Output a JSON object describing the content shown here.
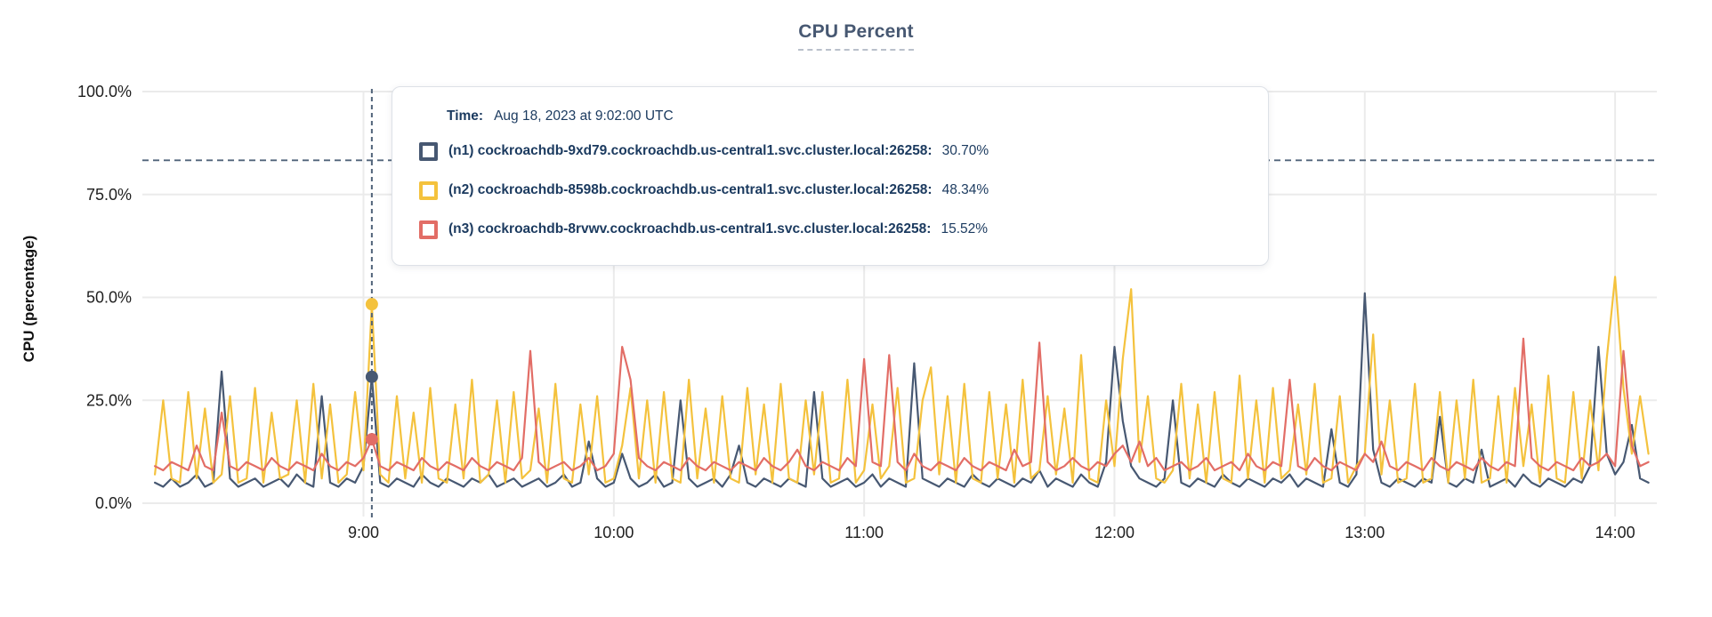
{
  "title": "CPU Percent",
  "y_axis_title": "CPU (percentage)",
  "tooltip": {
    "time_label": "Time:",
    "time_value": "Aug 18, 2023 at 9:02:00 UTC",
    "rows": [
      {
        "label": "(n1) cockroachdb-9xd79.cockroachdb.us-central1.svc.cluster.local:26258:",
        "value": "30.70%",
        "color": "#475872"
      },
      {
        "label": "(n2) cockroachdb-8598b.cockroachdb.us-central1.svc.cluster.local:26258:",
        "value": "48.34%",
        "color": "#f4c23d"
      },
      {
        "label": "(n3) cockroachdb-8rvwv.cockroachdb.us-central1.svc.cluster.local:26258:",
        "value": "15.52%",
        "color": "#e26d66"
      }
    ]
  },
  "colors": {
    "title": "#475872",
    "grid": "#ebebeb",
    "crosshair": "#51647a",
    "tick_text": "#1f1f1f",
    "tooltip_text": "#1b3a5f"
  },
  "chart_data": {
    "type": "line",
    "title": "CPU Percent",
    "xlabel": "",
    "ylabel": "CPU (percentage)",
    "ylim": [
      0,
      100
    ],
    "grid": true,
    "legend_position": "tooltip",
    "y_ticks": [
      {
        "value": 0,
        "label": "0.0%"
      },
      {
        "value": 25,
        "label": "25.0%"
      },
      {
        "value": 50,
        "label": "50.0%"
      },
      {
        "value": 75,
        "label": "75.0%"
      },
      {
        "value": 100,
        "label": "100.0%"
      }
    ],
    "x_ticks": [
      {
        "minute": 540,
        "label": "9:00"
      },
      {
        "minute": 600,
        "label": "10:00"
      },
      {
        "minute": 660,
        "label": "11:00"
      },
      {
        "minute": 720,
        "label": "12:00"
      },
      {
        "minute": 780,
        "label": "13:00"
      },
      {
        "minute": 840,
        "label": "14:00"
      }
    ],
    "x_range_minutes": [
      487,
      850
    ],
    "start_minute": 490,
    "step_minutes": 2,
    "threshold_percent": 83.3,
    "hover": {
      "minute": 542,
      "time": "Aug 18, 2023 at 9:02:00 UTC",
      "values": [
        30.7,
        48.34,
        15.52
      ]
    },
    "series": [
      {
        "name": "(n1) cockroachdb-9xd79.cockroachdb.us-central1.svc.cluster.local:26258",
        "color": "#475872",
        "values": [
          5,
          4,
          6,
          4,
          5,
          7,
          4,
          5,
          32,
          6,
          4,
          5,
          6,
          4,
          5,
          6,
          4,
          7,
          5,
          4,
          26,
          5,
          4,
          6,
          5,
          9,
          30.7,
          5,
          4,
          6,
          5,
          4,
          7,
          5,
          4,
          6,
          5,
          4,
          6,
          5,
          7,
          4,
          5,
          6,
          4,
          5,
          6,
          4,
          5,
          7,
          4,
          5,
          15,
          6,
          4,
          5,
          12,
          6,
          4,
          5,
          7,
          4,
          5,
          25,
          6,
          4,
          5,
          6,
          4,
          7,
          14,
          5,
          4,
          6,
          5,
          4,
          6,
          5,
          4,
          27,
          6,
          4,
          5,
          6,
          4,
          5,
          7,
          4,
          6,
          5,
          4,
          34,
          6,
          5,
          4,
          6,
          5,
          4,
          7,
          5,
          4,
          6,
          5,
          4,
          6,
          5,
          8,
          4,
          6,
          5,
          4,
          7,
          5,
          4,
          10,
          38,
          20,
          9,
          6,
          5,
          4,
          6,
          25,
          5,
          4,
          6,
          5,
          4,
          7,
          5,
          4,
          6,
          5,
          4,
          6,
          5,
          7,
          4,
          6,
          5,
          4,
          18,
          5,
          4,
          7,
          51,
          13,
          5,
          4,
          6,
          5,
          4,
          6,
          5,
          21,
          5,
          4,
          6,
          5,
          13,
          4,
          5,
          6,
          4,
          7,
          5,
          4,
          6,
          5,
          4,
          6,
          5,
          9,
          38,
          12,
          7,
          10,
          19,
          6,
          5
        ]
      },
      {
        "name": "(n2) cockroachdb-8598b.cockroachdb.us-central1.svc.cluster.local:26258",
        "color": "#f4c23d",
        "values": [
          7,
          25,
          6,
          5,
          27,
          6,
          23,
          5,
          7,
          26,
          5,
          6,
          28,
          5,
          22,
          6,
          7,
          25,
          5,
          29,
          6,
          24,
          5,
          7,
          27,
          8,
          48.3,
          7,
          5,
          26,
          6,
          22,
          5,
          28,
          6,
          5,
          24,
          6,
          30,
          5,
          7,
          25,
          5,
          27,
          6,
          8,
          23,
          5,
          29,
          6,
          5,
          24,
          7,
          26,
          5,
          6,
          14,
          28,
          6,
          25,
          5,
          27,
          6,
          5,
          30,
          6,
          23,
          5,
          26,
          6,
          5,
          28,
          7,
          24,
          5,
          29,
          6,
          5,
          25,
          7,
          27,
          5,
          6,
          30,
          5,
          8,
          24,
          6,
          9,
          28,
          5,
          6,
          25,
          33,
          7,
          26,
          5,
          29,
          6,
          5,
          27,
          6,
          24,
          5,
          30,
          6,
          8,
          26,
          7,
          23,
          5,
          36,
          6,
          5,
          25,
          9,
          35,
          52,
          10,
          26,
          6,
          5,
          8,
          29,
          6,
          24,
          5,
          27,
          6,
          5,
          31,
          6,
          25,
          5,
          28,
          6,
          8,
          24,
          7,
          29,
          5,
          6,
          26,
          5,
          9,
          12,
          41,
          7,
          25,
          5,
          6,
          29,
          5,
          6,
          27,
          5,
          25,
          6,
          30,
          5,
          6,
          26,
          5,
          28,
          9,
          24,
          5,
          31,
          6,
          5,
          27,
          6,
          25,
          8,
          35,
          55,
          28,
          12,
          26,
          12
        ]
      },
      {
        "name": "(n3) cockroachdb-8rvwv.cockroachdb.us-central1.svc.cluster.local:26258",
        "color": "#e26d66",
        "values": [
          9,
          8,
          10,
          9,
          8,
          14,
          9,
          8,
          22,
          9,
          8,
          10,
          9,
          8,
          11,
          9,
          8,
          10,
          9,
          8,
          12,
          9,
          8,
          10,
          9,
          11,
          15.5,
          9,
          8,
          10,
          9,
          8,
          11,
          9,
          8,
          10,
          9,
          8,
          11,
          9,
          8,
          10,
          9,
          8,
          11,
          37,
          10,
          8,
          9,
          10,
          8,
          9,
          11,
          8,
          9,
          12,
          38,
          30,
          11,
          9,
          8,
          10,
          9,
          8,
          11,
          9,
          8,
          10,
          9,
          8,
          10,
          9,
          8,
          11,
          9,
          8,
          10,
          13,
          9,
          8,
          10,
          9,
          8,
          11,
          9,
          35,
          10,
          9,
          36,
          10,
          8,
          12,
          9,
          8,
          10,
          9,
          8,
          11,
          9,
          8,
          10,
          9,
          8,
          13,
          9,
          10,
          39,
          10,
          8,
          9,
          11,
          9,
          8,
          10,
          9,
          12,
          14,
          10,
          15,
          9,
          11,
          8,
          9,
          10,
          8,
          9,
          11,
          8,
          9,
          10,
          8,
          12,
          9,
          8,
          10,
          9,
          30,
          9,
          8,
          11,
          9,
          8,
          10,
          9,
          8,
          12,
          10,
          15,
          9,
          8,
          10,
          9,
          8,
          11,
          9,
          8,
          10,
          9,
          8,
          11,
          9,
          8,
          10,
          9,
          40,
          11,
          9,
          8,
          10,
          9,
          8,
          11,
          9,
          10,
          12,
          9,
          37,
          14,
          9,
          10
        ]
      }
    ]
  }
}
